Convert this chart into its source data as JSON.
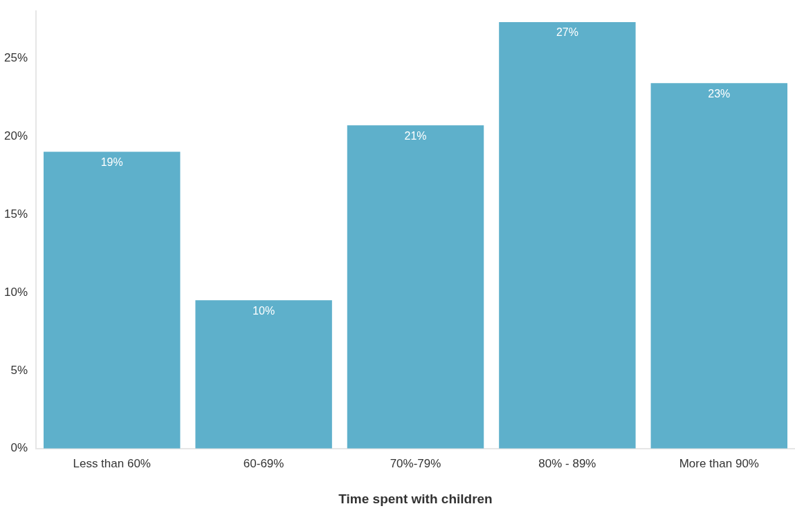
{
  "chart_data": {
    "type": "bar",
    "xlabel": "Time spent with children",
    "categories": [
      "Less than 60%",
      "60-69%",
      "70%-79%",
      "80% - 89%",
      "More than 90%"
    ],
    "values": [
      19,
      9.5,
      20.7,
      27.3,
      23.4
    ],
    "value_labels": [
      "19%",
      "10%",
      "21%",
      "27%",
      "23%"
    ],
    "color": "#5eb0cb",
    "ylim": [
      0,
      28
    ],
    "yticks": [
      {
        "value": 0,
        "label": "0%"
      },
      {
        "value": 5,
        "label": "5%"
      },
      {
        "value": 10,
        "label": "10%"
      },
      {
        "value": 15,
        "label": "15%"
      },
      {
        "value": 20,
        "label": "20%"
      },
      {
        "value": 25,
        "label": "25%"
      }
    ],
    "grid": false,
    "legend": false
  }
}
